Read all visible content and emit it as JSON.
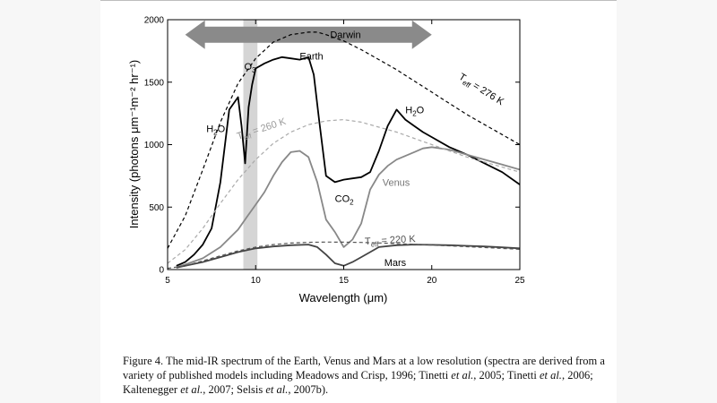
{
  "chart_data": {
    "type": "line",
    "xlabel": "Wavelength (μm)",
    "ylabel": "Intensity (photons μm⁻¹m⁻² hr⁻¹)",
    "xlim": [
      5,
      25
    ],
    "ylim": [
      0,
      2000
    ],
    "x_ticks": [
      5,
      10,
      15,
      20,
      25
    ],
    "y_ticks": [
      0,
      500,
      1000,
      1500,
      2000
    ],
    "grid": false,
    "series": [
      {
        "name": "Earth",
        "color": "#000000",
        "x": [
          5.5,
          6,
          6.5,
          7,
          7.5,
          8,
          8.5,
          9,
          9.2,
          9.4,
          9.6,
          9.8,
          10,
          10.5,
          11,
          11.5,
          12,
          12.5,
          13,
          13.3,
          13.6,
          14,
          14.5,
          15,
          15.5,
          16,
          16.5,
          17,
          17.5,
          18,
          18.5,
          19,
          19.5,
          20,
          21,
          22,
          23,
          24,
          25
        ],
        "y": [
          30,
          60,
          120,
          200,
          330,
          700,
          1280,
          1380,
          1150,
          850,
          1300,
          1480,
          1610,
          1650,
          1680,
          1700,
          1690,
          1680,
          1700,
          1560,
          1200,
          750,
          700,
          720,
          730,
          740,
          780,
          950,
          1150,
          1280,
          1200,
          1150,
          1100,
          1060,
          980,
          920,
          850,
          780,
          680
        ]
      },
      {
        "name": "Venus",
        "color": "#888888",
        "x": [
          5.5,
          6,
          7,
          8,
          8.5,
          9,
          9.5,
          10,
          10.5,
          11,
          11.5,
          12,
          12.5,
          13,
          13.5,
          14,
          14.5,
          15,
          15.5,
          16,
          16.5,
          17,
          17.5,
          18,
          18.5,
          19,
          19.5,
          20,
          21,
          22,
          23,
          24,
          25
        ],
        "y": [
          20,
          40,
          90,
          180,
          250,
          320,
          420,
          520,
          620,
          750,
          860,
          940,
          950,
          900,
          700,
          400,
          300,
          180,
          240,
          370,
          640,
          760,
          830,
          880,
          910,
          940,
          970,
          980,
          960,
          920,
          880,
          840,
          800
        ]
      },
      {
        "name": "Mars",
        "color": "#444444",
        "x": [
          5.5,
          6,
          7,
          8,
          9,
          10,
          11,
          12,
          13,
          13.5,
          14,
          14.5,
          15,
          15.5,
          16,
          16.5,
          17,
          18,
          19,
          20,
          21,
          22,
          23,
          24,
          25
        ],
        "y": [
          15,
          30,
          60,
          100,
          140,
          170,
          185,
          195,
          200,
          180,
          120,
          50,
          30,
          60,
          100,
          140,
          180,
          195,
          200,
          198,
          195,
          190,
          185,
          178,
          170
        ]
      },
      {
        "name": "Teff = 276 K",
        "color": "#000000",
        "dash": true,
        "x": [
          5,
          6,
          7,
          8,
          9,
          10,
          11,
          12,
          13,
          13.5,
          14,
          15,
          16,
          17,
          18,
          19,
          20,
          21,
          22,
          23,
          24,
          25
        ],
        "y": [
          170,
          430,
          800,
          1180,
          1490,
          1690,
          1820,
          1880,
          1900,
          1900,
          1880,
          1830,
          1760,
          1680,
          1600,
          1510,
          1420,
          1330,
          1240,
          1160,
          1080,
          1000
        ]
      },
      {
        "name": "Teff = 260 K",
        "color": "#aaaaaa",
        "dash": true,
        "x": [
          5,
          6,
          7,
          8,
          9,
          10,
          11,
          12,
          13,
          14,
          15,
          16,
          17,
          18,
          19,
          20,
          21,
          22,
          23,
          24,
          25
        ],
        "y": [
          50,
          160,
          330,
          530,
          720,
          880,
          1010,
          1100,
          1160,
          1190,
          1200,
          1180,
          1140,
          1100,
          1050,
          1000,
          950,
          900,
          860,
          820,
          780
        ]
      },
      {
        "name": "Teff = 220 K",
        "color": "#555555",
        "dash": true,
        "x": [
          5,
          6,
          7,
          8,
          9,
          10,
          11,
          12,
          13,
          14,
          15,
          16,
          17,
          18,
          19,
          20,
          21,
          22,
          23,
          24,
          25
        ],
        "y": [
          10,
          30,
          70,
          110,
          150,
          180,
          200,
          212,
          218,
          220,
          219,
          217,
          213,
          208,
          202,
          196,
          190,
          183,
          176,
          169,
          162
        ]
      }
    ],
    "shaded_band": {
      "x": [
        9.3,
        10.1
      ],
      "color": "#d5d5d5"
    },
    "arrow": {
      "x": [
        6,
        20
      ],
      "y": 1880,
      "label": "Darwin",
      "color": "#8a8a8a"
    },
    "annotations": [
      {
        "text": "O3",
        "x": 9.35,
        "y": 1600,
        "color": "#000000"
      },
      {
        "text": "Earth",
        "x": 12.5,
        "y": 1680,
        "color": "#000000"
      },
      {
        "text": "H2O",
        "x": 7.2,
        "y": 1100,
        "color": "#000000"
      },
      {
        "text": "H2O",
        "x": 18.5,
        "y": 1250,
        "color": "#000000"
      },
      {
        "text": "CO2",
        "x": 14.5,
        "y": 540,
        "color": "#000000"
      },
      {
        "text": "Venus",
        "x": 17.2,
        "y": 670,
        "color": "#777777"
      },
      {
        "text": "Mars",
        "x": 17.3,
        "y": 30,
        "color": "#000000"
      },
      {
        "text": "Teff = 276 K",
        "x": 21.5,
        "y": 1530,
        "color": "#000000"
      },
      {
        "text": "Teff = 260 K",
        "x": 9.0,
        "y": 1040,
        "color": "#999999"
      },
      {
        "text": "Teff = 220 K",
        "x": 16.2,
        "y": 200,
        "color": "#555555"
      }
    ]
  },
  "caption": {
    "prefix": "Figure 4. The mid-IR spectrum of the Earth, Venus and Mars at a low resolution (spectra are derived from a variety of published models including Meadows and Crisp, 1996; Tinetti ",
    "parts": [
      "et al.",
      ", 2005; Tinetti ",
      "et al.",
      ", 2006; Kaltenegger ",
      "et al.",
      ", 2007; Selsis ",
      "et al.",
      ", 2007b)."
    ]
  }
}
